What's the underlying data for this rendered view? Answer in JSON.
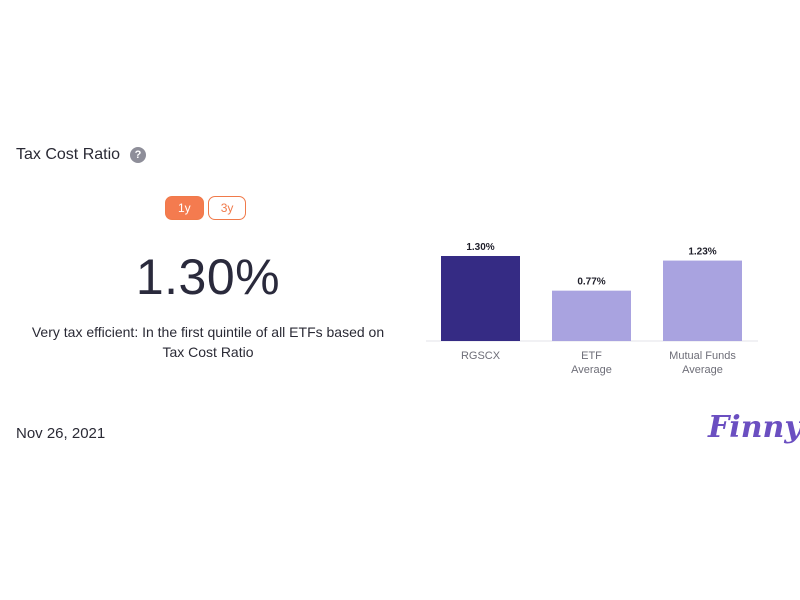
{
  "header": {
    "title": "Tax Cost Ratio",
    "help_icon": "question-circle-icon",
    "help_glyph": "?"
  },
  "period_toggle": {
    "options": [
      "1y",
      "3y"
    ],
    "selected": "1y"
  },
  "metric": {
    "value": "1.30%",
    "description": "Very tax efficient: In the first quintile of all ETFs based on Tax Cost Ratio"
  },
  "chart_data": {
    "type": "bar",
    "categories": [
      [
        "RGSCX"
      ],
      [
        "ETF",
        "Average"
      ],
      [
        "Mutual Funds",
        "Average"
      ]
    ],
    "values": [
      1.3,
      0.77,
      1.23
    ],
    "value_labels": [
      "1.30%",
      "0.77%",
      "1.23%"
    ],
    "ylim": [
      0,
      1.3
    ],
    "grid": false,
    "colors": [
      "#352b84",
      "#a9a3e0",
      "#a9a3e0"
    ]
  },
  "footer": {
    "date": "Nov 26, 2021",
    "logo": "Finny"
  },
  "colors": {
    "accent": "#f47b4f",
    "brand": "#6b4fc1"
  }
}
